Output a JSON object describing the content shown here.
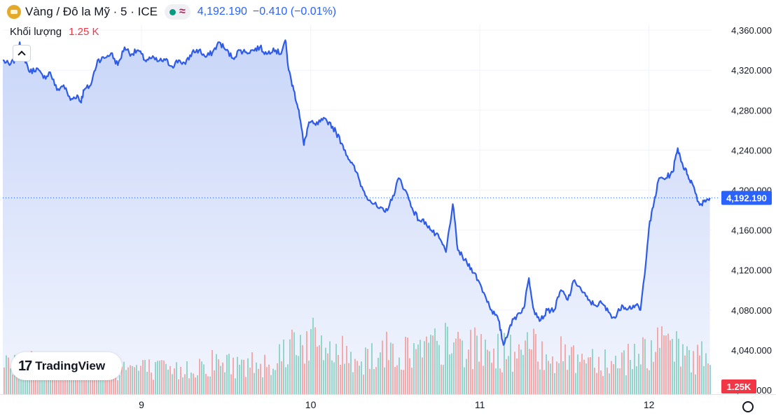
{
  "legend": {
    "symbol_title": "Vàng / Đô la Mỹ · 5 · ICE",
    "last_price": "4,192.190",
    "change": "−0.410 (−0.01%)",
    "market_status_icon": "market-open-dot-icon",
    "indicator_icon": "wave-icon"
  },
  "volume_legend": {
    "label": "Khối lượng",
    "value": "1.25 K"
  },
  "last_price_badge": "4,192.190",
  "volume_badge": "1.25K",
  "logo": {
    "mark": "17",
    "text": "TradingView"
  },
  "colors": {
    "line": "#2e5be8",
    "area_top": "#c9d6f8",
    "area_bottom": "#f2f5fe",
    "vol_up": "#8fd3c6",
    "vol_down": "#f3a5a5",
    "badge_price": "#2962ff",
    "badge_volume": "#f23645"
  },
  "chart_data": {
    "type": "line",
    "y_axis": {
      "ticks": [
        "4,360.000",
        "4,320.000",
        "4,280.000",
        "4,240.000",
        "4,200.000",
        "4,160.000",
        "4,120.000",
        "4,080.000",
        "4,040.000",
        "4,000.000"
      ],
      "tick_values": [
        4360,
        4320,
        4280,
        4240,
        4200,
        4160,
        4120,
        4080,
        4040,
        4000
      ],
      "range": [
        4000,
        4376
      ]
    },
    "x_axis": {
      "ticks": [
        "9",
        "10",
        "11",
        "12"
      ],
      "range": [
        8.18,
        12.37
      ]
    },
    "last_value": 4192.19,
    "grid": true,
    "series": [
      {
        "values": [
          [
            8.18,
            4330
          ],
          [
            8.22,
            4325
          ],
          [
            8.26,
            4332
          ],
          [
            8.28,
            4348
          ],
          [
            8.3,
            4336
          ],
          [
            8.34,
            4318
          ],
          [
            8.38,
            4322
          ],
          [
            8.42,
            4312
          ],
          [
            8.46,
            4318
          ],
          [
            8.5,
            4300
          ],
          [
            8.54,
            4305
          ],
          [
            8.58,
            4290
          ],
          [
            8.62,
            4295
          ],
          [
            8.64,
            4288
          ],
          [
            8.66,
            4300
          ],
          [
            8.7,
            4305
          ],
          [
            8.74,
            4330
          ],
          [
            8.78,
            4332
          ],
          [
            8.82,
            4337
          ],
          [
            8.86,
            4325
          ],
          [
            8.9,
            4343
          ],
          [
            8.94,
            4336
          ],
          [
            8.98,
            4340
          ],
          [
            9.02,
            4330
          ],
          [
            9.06,
            4332
          ],
          [
            9.1,
            4329
          ],
          [
            9.14,
            4330
          ],
          [
            9.18,
            4324
          ],
          [
            9.22,
            4330
          ],
          [
            9.26,
            4326
          ],
          [
            9.3,
            4338
          ],
          [
            9.34,
            4340
          ],
          [
            9.38,
            4333
          ],
          [
            9.42,
            4338
          ],
          [
            9.46,
            4348
          ],
          [
            9.5,
            4340
          ],
          [
            9.54,
            4332
          ],
          [
            9.58,
            4340
          ],
          [
            9.62,
            4338
          ],
          [
            9.66,
            4340
          ],
          [
            9.7,
            4343
          ],
          [
            9.74,
            4336
          ],
          [
            9.78,
            4342
          ],
          [
            9.82,
            4336
          ],
          [
            9.85,
            4350
          ],
          [
            9.87,
            4320
          ],
          [
            9.9,
            4300
          ],
          [
            9.93,
            4280
          ],
          [
            9.96,
            4245
          ],
          [
            9.99,
            4268
          ],
          [
            10.03,
            4265
          ],
          [
            10.07,
            4270
          ],
          [
            10.11,
            4268
          ],
          [
            10.15,
            4258
          ],
          [
            10.19,
            4245
          ],
          [
            10.23,
            4230
          ],
          [
            10.27,
            4218
          ],
          [
            10.31,
            4200
          ],
          [
            10.35,
            4190
          ],
          [
            10.4,
            4182
          ],
          [
            10.44,
            4178
          ],
          [
            10.48,
            4190
          ],
          [
            10.52,
            4212
          ],
          [
            10.56,
            4200
          ],
          [
            10.6,
            4182
          ],
          [
            10.64,
            4170
          ],
          [
            10.68,
            4168
          ],
          [
            10.72,
            4158
          ],
          [
            10.76,
            4152
          ],
          [
            10.8,
            4138
          ],
          [
            10.84,
            4186
          ],
          [
            10.87,
            4140
          ],
          [
            10.91,
            4130
          ],
          [
            10.95,
            4122
          ],
          [
            10.99,
            4110
          ],
          [
            11.03,
            4095
          ],
          [
            11.07,
            4080
          ],
          [
            11.11,
            4070
          ],
          [
            11.14,
            4045
          ],
          [
            11.18,
            4065
          ],
          [
            11.22,
            4075
          ],
          [
            11.26,
            4082
          ],
          [
            11.29,
            4112
          ],
          [
            11.32,
            4080
          ],
          [
            11.36,
            4070
          ],
          [
            11.4,
            4080
          ],
          [
            11.44,
            4080
          ],
          [
            11.48,
            4100
          ],
          [
            11.52,
            4090
          ],
          [
            11.56,
            4110
          ],
          [
            11.6,
            4100
          ],
          [
            11.64,
            4090
          ],
          [
            11.68,
            4085
          ],
          [
            11.72,
            4087
          ],
          [
            11.76,
            4078
          ],
          [
            11.8,
            4072
          ],
          [
            11.84,
            4085
          ],
          [
            11.88,
            4082
          ],
          [
            11.92,
            4085
          ],
          [
            11.95,
            4080
          ],
          [
            11.97,
            4110
          ],
          [
            12.0,
            4162
          ],
          [
            12.03,
            4188
          ],
          [
            12.06,
            4212
          ],
          [
            12.1,
            4212
          ],
          [
            12.14,
            4218
          ],
          [
            12.17,
            4242
          ],
          [
            12.2,
            4225
          ],
          [
            12.23,
            4215
          ],
          [
            12.26,
            4205
          ],
          [
            12.3,
            4185
          ],
          [
            12.33,
            4190
          ],
          [
            12.36,
            4192.19
          ]
        ]
      }
    ],
    "volume": {
      "label": "Khối lượng",
      "last": "1.25 K",
      "max": 100,
      "anchors": [
        [
          8.18,
          40
        ],
        [
          8.35,
          38
        ],
        [
          8.5,
          36
        ],
        [
          8.7,
          32
        ],
        [
          8.9,
          34
        ],
        [
          9.1,
          30
        ],
        [
          9.2,
          28
        ],
        [
          9.4,
          40
        ],
        [
          9.6,
          36
        ],
        [
          9.8,
          45
        ],
        [
          9.9,
          70
        ],
        [
          10.0,
          66
        ],
        [
          10.1,
          55
        ],
        [
          10.2,
          50
        ],
        [
          10.3,
          44
        ],
        [
          10.4,
          55
        ],
        [
          10.6,
          52
        ],
        [
          10.8,
          62
        ],
        [
          11.0,
          56
        ],
        [
          11.2,
          52
        ],
        [
          11.3,
          56
        ],
        [
          11.5,
          48
        ],
        [
          11.7,
          46
        ],
        [
          11.8,
          40
        ],
        [
          11.9,
          50
        ],
        [
          12.0,
          55
        ],
        [
          12.1,
          60
        ],
        [
          12.2,
          50
        ],
        [
          12.37,
          45
        ]
      ]
    }
  }
}
